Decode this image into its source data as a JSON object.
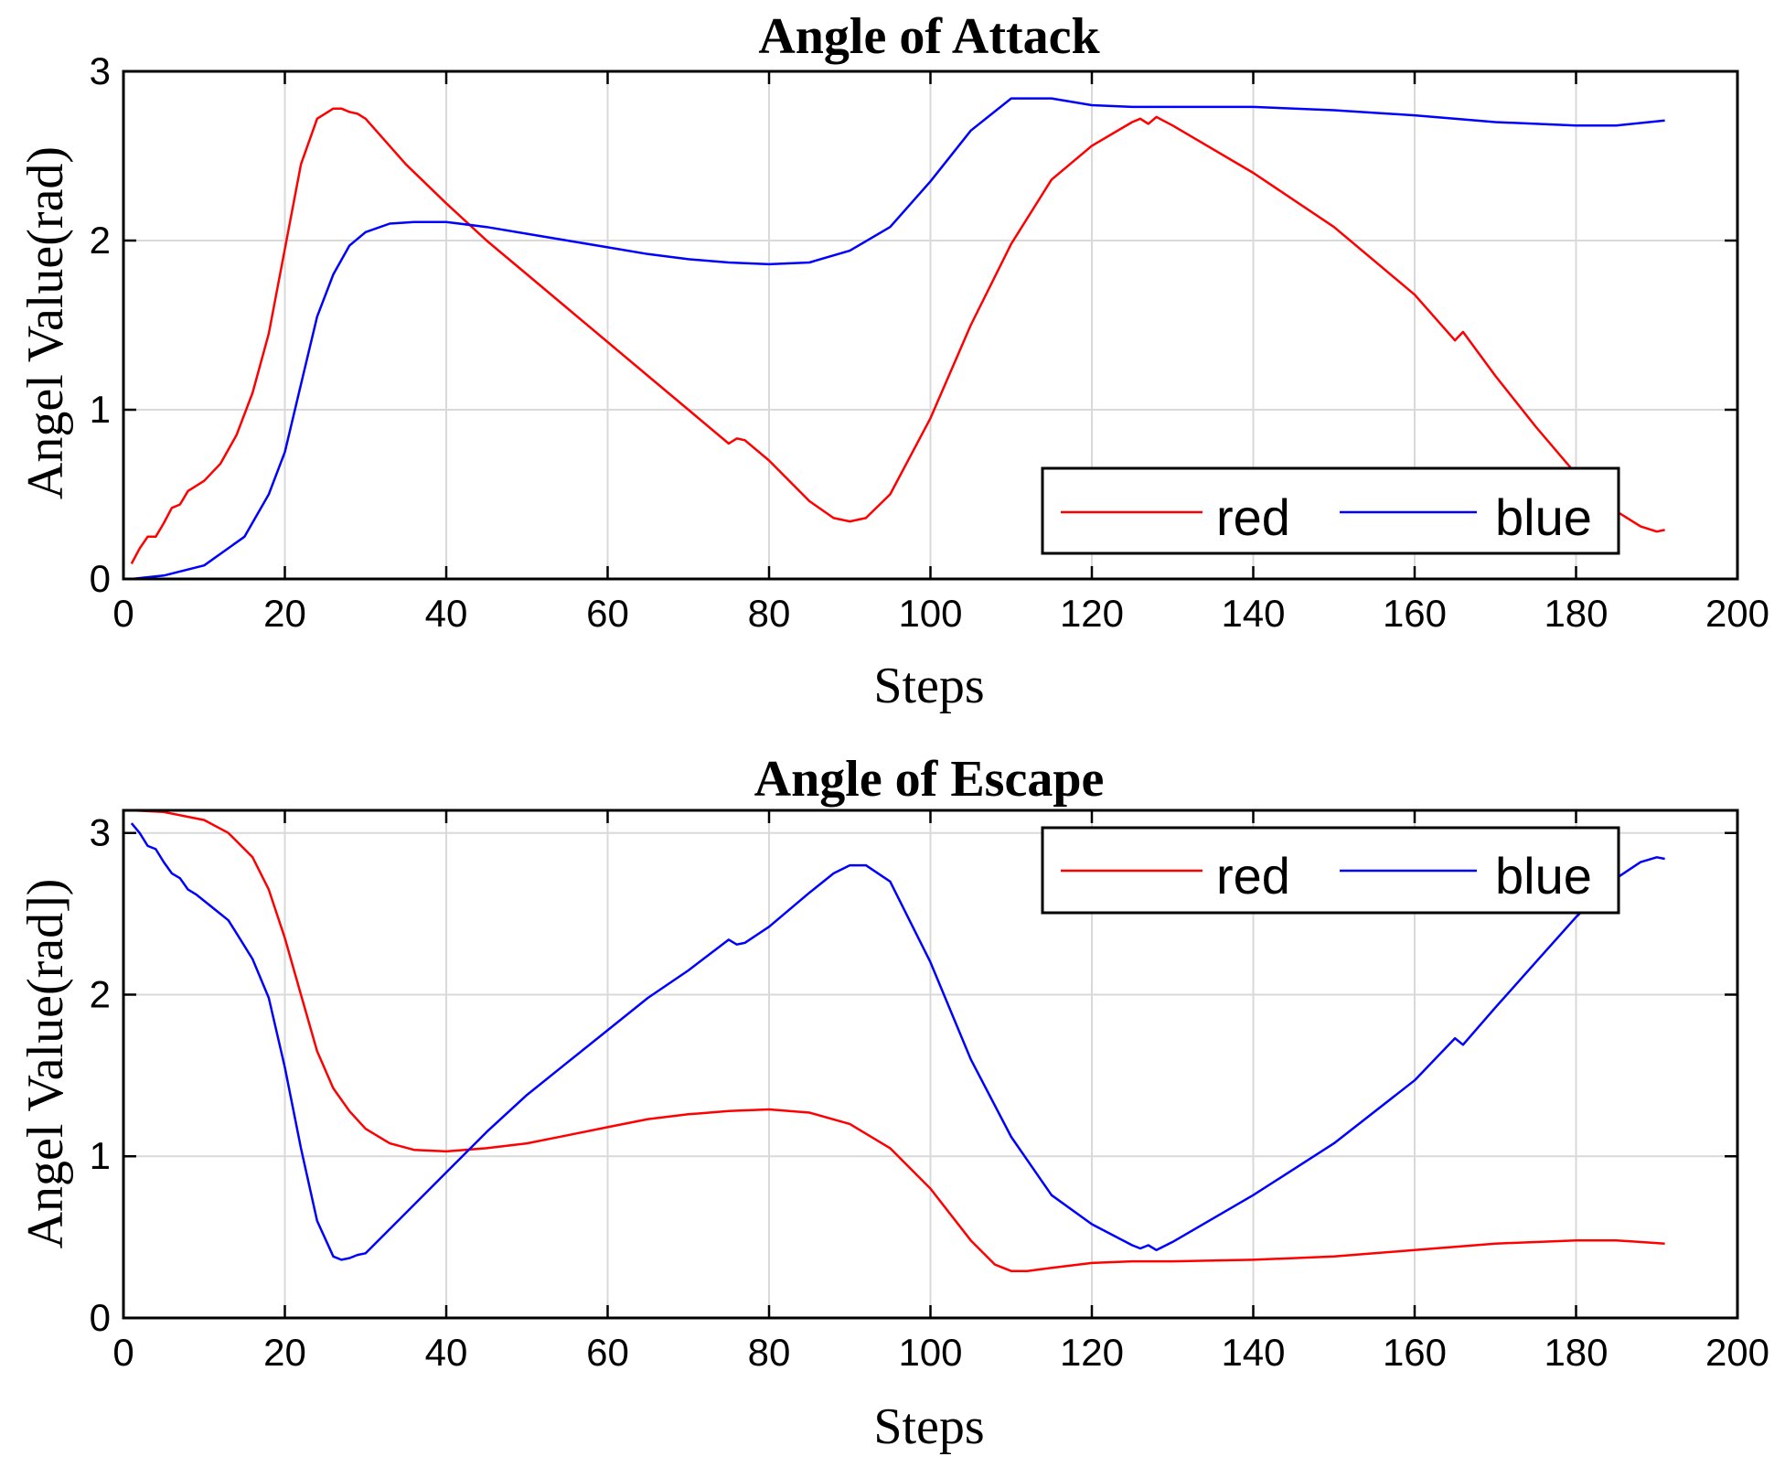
{
  "chart_data": [
    {
      "type": "line",
      "title": "Angle of Attack",
      "xlabel": "Steps",
      "ylabel": "Angel Value(rad)",
      "xlim": [
        0,
        200
      ],
      "ylim": [
        0,
        3.0
      ],
      "xticks": [
        "0",
        "20",
        "40",
        "60",
        "80",
        "100",
        "120",
        "140",
        "160",
        "180",
        "200"
      ],
      "yticks": [
        "0",
        "1",
        "2",
        "3"
      ],
      "grid": true,
      "legend_position": "bottom-right",
      "series": [
        {
          "name": "red",
          "color": "#ff0000",
          "x": [
            1,
            2,
            3,
            4,
            5,
            6,
            7,
            8,
            9,
            10,
            12,
            14,
            16,
            18,
            20,
            22,
            24,
            26,
            27,
            28,
            29,
            30,
            35,
            40,
            45,
            50,
            55,
            60,
            65,
            70,
            75,
            76,
            77,
            80,
            85,
            88,
            90,
            92,
            95,
            100,
            105,
            110,
            115,
            120,
            125,
            126,
            127,
            128,
            130,
            140,
            150,
            160,
            165,
            166,
            170,
            175,
            180,
            185,
            188,
            190,
            191
          ],
          "y": [
            0.09,
            0.18,
            0.25,
            0.25,
            0.33,
            0.42,
            0.44,
            0.52,
            0.55,
            0.58,
            0.68,
            0.85,
            1.1,
            1.45,
            1.95,
            2.45,
            2.72,
            2.78,
            2.78,
            2.76,
            2.75,
            2.72,
            2.45,
            2.22,
            2.0,
            1.8,
            1.6,
            1.4,
            1.2,
            1.0,
            0.8,
            0.83,
            0.82,
            0.7,
            0.46,
            0.36,
            0.34,
            0.36,
            0.5,
            0.95,
            1.5,
            1.98,
            2.36,
            2.56,
            2.7,
            2.72,
            2.69,
            2.73,
            2.68,
            2.4,
            2.08,
            1.68,
            1.41,
            1.46,
            1.2,
            0.9,
            0.62,
            0.4,
            0.31,
            0.28,
            0.29
          ]
        },
        {
          "name": "blue",
          "color": "#0000ff",
          "x": [
            1,
            5,
            10,
            15,
            18,
            20,
            22,
            24,
            26,
            28,
            30,
            33,
            36,
            40,
            45,
            50,
            55,
            60,
            65,
            70,
            75,
            80,
            85,
            90,
            95,
            100,
            105,
            110,
            115,
            120,
            125,
            130,
            140,
            150,
            160,
            170,
            180,
            185,
            191
          ],
          "y": [
            0.0,
            0.02,
            0.08,
            0.25,
            0.5,
            0.75,
            1.15,
            1.55,
            1.8,
            1.97,
            2.05,
            2.1,
            2.11,
            2.11,
            2.08,
            2.04,
            2.0,
            1.96,
            1.92,
            1.89,
            1.87,
            1.86,
            1.87,
            1.94,
            2.08,
            2.35,
            2.65,
            2.84,
            2.84,
            2.8,
            2.79,
            2.79,
            2.79,
            2.77,
            2.74,
            2.7,
            2.68,
            2.68,
            2.71
          ]
        }
      ]
    },
    {
      "type": "line",
      "title": "Angle of Escape",
      "xlabel": "Steps",
      "ylabel": "Angel Value(rad])",
      "xlim": [
        0,
        200
      ],
      "ylim": [
        0,
        3.14
      ],
      "xticks": [
        "0",
        "20",
        "40",
        "60",
        "80",
        "100",
        "120",
        "140",
        "160",
        "180",
        "200"
      ],
      "yticks": [
        "0",
        "1",
        "2",
        "3"
      ],
      "grid": true,
      "legend_position": "top-right",
      "series": [
        {
          "name": "red",
          "color": "#ff0000",
          "x": [
            1,
            5,
            10,
            13,
            16,
            18,
            20,
            22,
            24,
            26,
            28,
            30,
            33,
            36,
            40,
            45,
            50,
            55,
            60,
            65,
            70,
            75,
            80,
            85,
            90,
            95,
            100,
            105,
            108,
            110,
            112,
            115,
            120,
            125,
            130,
            140,
            150,
            160,
            170,
            180,
            185,
            191
          ],
          "y": [
            3.14,
            3.13,
            3.08,
            3.0,
            2.85,
            2.65,
            2.35,
            2.0,
            1.65,
            1.42,
            1.28,
            1.17,
            1.08,
            1.04,
            1.03,
            1.05,
            1.08,
            1.13,
            1.18,
            1.23,
            1.26,
            1.28,
            1.29,
            1.27,
            1.2,
            1.05,
            0.8,
            0.48,
            0.33,
            0.29,
            0.29,
            0.31,
            0.34,
            0.35,
            0.35,
            0.36,
            0.38,
            0.42,
            0.46,
            0.48,
            0.48,
            0.46
          ]
        },
        {
          "name": "blue",
          "color": "#0000ff",
          "x": [
            1,
            2,
            3,
            4,
            5,
            6,
            7,
            8,
            9,
            10,
            12,
            13,
            14,
            16,
            18,
            20,
            22,
            24,
            26,
            27,
            28,
            29,
            30,
            35,
            40,
            45,
            50,
            55,
            60,
            65,
            70,
            75,
            76,
            77,
            80,
            85,
            88,
            90,
            92,
            95,
            100,
            105,
            110,
            115,
            120,
            125,
            126,
            127,
            128,
            130,
            140,
            150,
            160,
            165,
            166,
            170,
            175,
            180,
            185,
            188,
            190,
            191
          ],
          "y": [
            3.06,
            3.0,
            2.92,
            2.9,
            2.82,
            2.75,
            2.72,
            2.65,
            2.62,
            2.58,
            2.5,
            2.46,
            2.38,
            2.22,
            1.98,
            1.55,
            1.05,
            0.6,
            0.38,
            0.36,
            0.37,
            0.39,
            0.4,
            0.65,
            0.9,
            1.15,
            1.38,
            1.58,
            1.78,
            1.98,
            2.15,
            2.34,
            2.31,
            2.32,
            2.42,
            2.63,
            2.75,
            2.8,
            2.8,
            2.7,
            2.2,
            1.6,
            1.12,
            0.76,
            0.58,
            0.45,
            0.43,
            0.45,
            0.42,
            0.47,
            0.76,
            1.08,
            1.47,
            1.73,
            1.69,
            1.92,
            2.2,
            2.48,
            2.72,
            2.82,
            2.85,
            2.84
          ]
        }
      ]
    }
  ]
}
